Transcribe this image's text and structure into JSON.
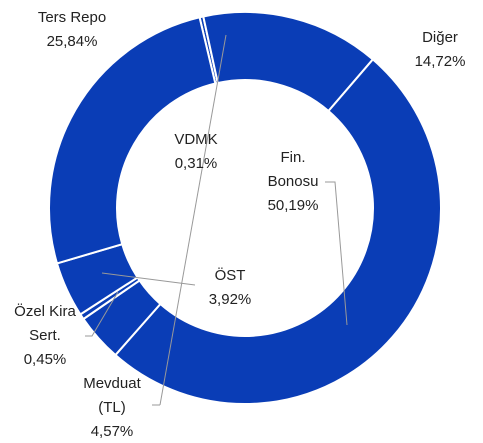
{
  "chart_data": {
    "type": "donut",
    "categories": [
      "VDMK",
      "Diğer",
      "Fin. Bonosu",
      "ÖST",
      "Özel Kira Sert.",
      "Mevduat (TL)",
      "Ters Repo"
    ],
    "values": [
      0.31,
      14.72,
      50.19,
      3.92,
      0.45,
      4.57,
      25.84
    ],
    "value_labels": [
      "0,31%",
      "14,72%",
      "50,19%",
      "3,92%",
      "0,45%",
      "4,57%",
      "25,84%"
    ],
    "color": "#0a3db6"
  }
}
